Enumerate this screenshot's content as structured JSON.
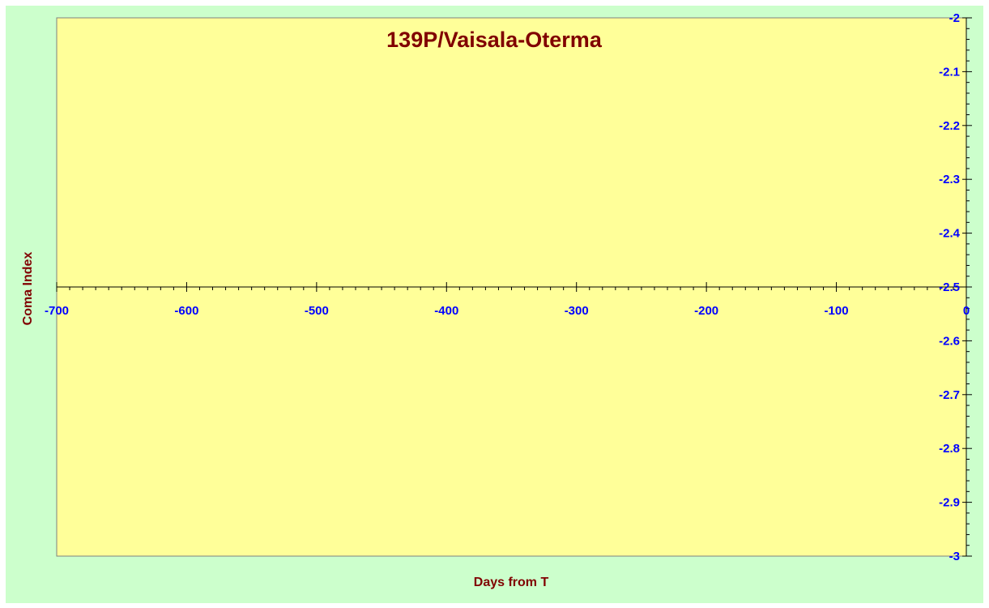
{
  "chart_data": {
    "type": "scatter",
    "title": "139P/Vaisala-Oterma",
    "xlabel": "Days from T",
    "ylabel": "Coma Index",
    "xlim": [
      -700,
      0
    ],
    "ylim": [
      -3,
      -2
    ],
    "x_ticks": [
      -700,
      -600,
      -500,
      -400,
      -300,
      -200,
      -100,
      0
    ],
    "x_tick_labels": [
      "-700",
      "-600",
      "-500",
      "-400",
      "-300",
      "-200",
      "-100",
      "0"
    ],
    "y_ticks": [
      -2,
      -2.1,
      -2.2,
      -2.3,
      -2.4,
      -2.5,
      -2.6,
      -2.7,
      -2.8,
      -2.9,
      -3
    ],
    "y_tick_labels": [
      "-2",
      "-2.1",
      "-2.2",
      "-2.3",
      "-2.4",
      "-2.5",
      "-2.6",
      "-2.7",
      "-2.8",
      "-2.9",
      "-3"
    ],
    "x_axis_crosses_at_y": -2.5,
    "y_axis_position": "right",
    "grid": false,
    "legend": "none",
    "series": [],
    "colors": {
      "outer_background": "#ccffcc",
      "plot_background": "#ffff99",
      "title": "#800000",
      "axis_title": "#800000",
      "tick_labels": "#0000ff",
      "axis_line": "#000000",
      "plot_border": "#808080"
    }
  }
}
